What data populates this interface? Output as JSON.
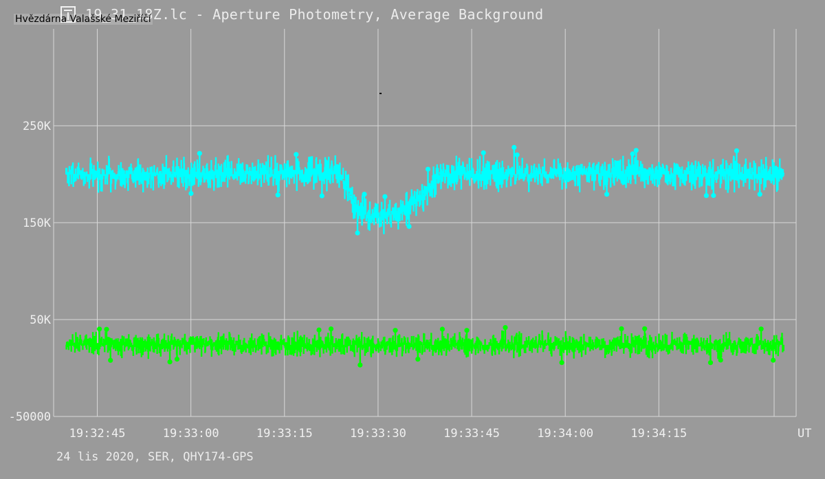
{
  "window": {
    "title": "19_31_18Z.lc - Aperture Photometry, Average Background"
  },
  "watermark": "Hvězdárna Valašské Meziříčí",
  "footer": "24 lis 2020, SER, QHY174-GPS",
  "colors": {
    "background": "#9a9a9a",
    "grid": "#d8d8d8",
    "target": "#00ffff",
    "comparison": "#00ff00"
  },
  "chart_data": {
    "type": "scatter",
    "title": "19_31_18Z.lc - Aperture Photometry, Average Background",
    "x_unit_label": "UT",
    "x_range": [
      "19:32:38",
      "19:34:37"
    ],
    "x_ticks": [
      "19:32:45",
      "19:33:00",
      "19:33:15",
      "19:33:30",
      "19:33:45",
      "19:34:00",
      "19:34:15"
    ],
    "y_ticks": [
      {
        "value": 250000,
        "label": "250K"
      },
      {
        "value": 150000,
        "label": "150K"
      },
      {
        "value": 50000,
        "label": "50K"
      },
      {
        "value": -50000,
        "label": "-50000"
      }
    ],
    "ylim": [
      -50000,
      350000
    ],
    "grid": true,
    "series": [
      {
        "color": "#00ffff",
        "x": [
          "19:32:40",
          "19:32:45",
          "19:32:50",
          "19:32:55",
          "19:33:00",
          "19:33:05",
          "19:33:10",
          "19:33:15",
          "19:33:20",
          "19:33:24",
          "19:33:27",
          "19:33:30",
          "19:33:33",
          "19:33:36",
          "19:33:40",
          "19:33:45",
          "19:33:50",
          "19:33:55",
          "19:34:00",
          "19:34:05",
          "19:34:10",
          "19:34:15",
          "19:34:20",
          "19:34:25",
          "19:34:30",
          "19:34:35"
        ],
        "y": [
          200000,
          200000,
          200000,
          200000,
          200000,
          200000,
          200000,
          200000,
          200000,
          200000,
          160000,
          155000,
          160000,
          170000,
          200000,
          200000,
          200000,
          200000,
          200000,
          200000,
          200000,
          200000,
          200000,
          200000,
          200000,
          200000
        ],
        "spread": 60000
      },
      {
        "color": "#00ff00",
        "x": [
          "19:32:40",
          "19:33:00",
          "19:33:30",
          "19:34:00",
          "19:34:35"
        ],
        "y": [
          24000,
          24000,
          24000,
          24000,
          24000
        ],
        "spread": 45000
      }
    ]
  }
}
